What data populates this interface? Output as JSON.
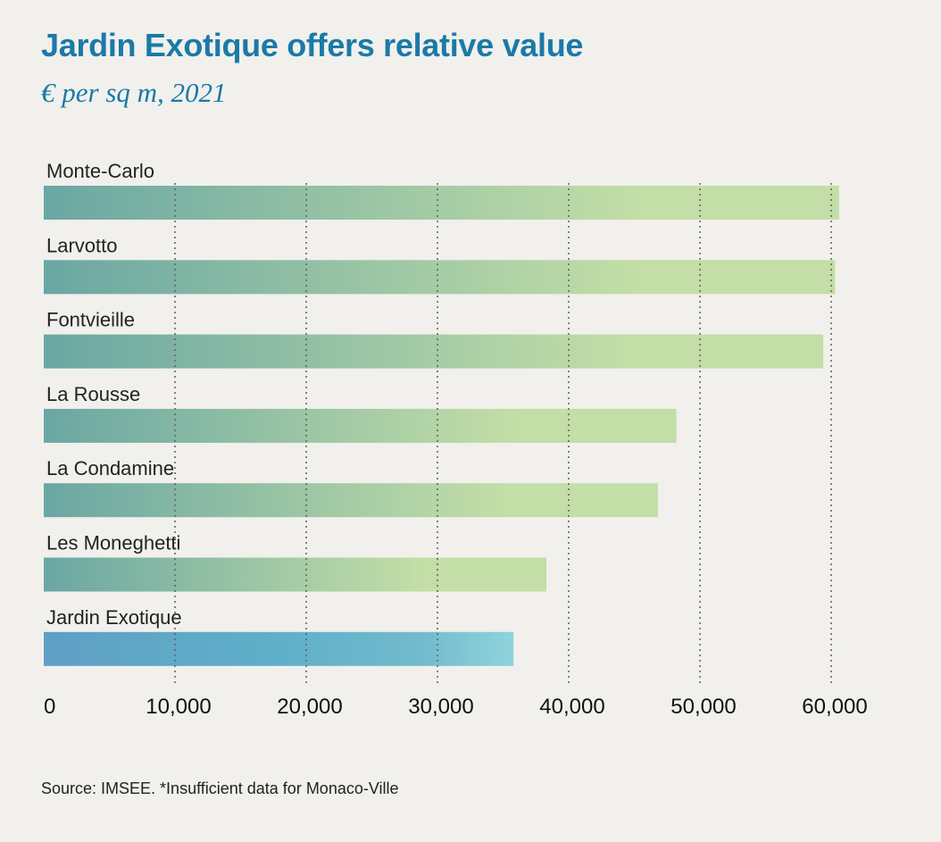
{
  "title": "Jardin Exotique offers relative value",
  "subtitle": "€ per sq m, 2021",
  "source": "Source: IMSEE. *Insufficient data for Monaco-Ville",
  "colors": {
    "title": "#1a7aa8",
    "bar_start": "#6aa7a3",
    "bar_end": "#c3dea6",
    "highlight_start": "#5f9fc4",
    "highlight_mid": "#5fb0c9",
    "highlight_end": "#8fd3dc"
  },
  "chart_data": {
    "type": "bar",
    "orientation": "horizontal",
    "title": "Jardin Exotique offers relative value",
    "subtitle": "€ per sq m, 2021",
    "xlabel": "",
    "ylabel": "",
    "categories": [
      "Monte-Carlo",
      "Larvotto",
      "Fontvieille",
      "La Rousse",
      "La Condamine",
      "Les Moneghetti",
      "Jardin Exotique"
    ],
    "values": [
      60600,
      60300,
      59400,
      48200,
      46800,
      38300,
      35800
    ],
    "highlight": "Jardin Exotique",
    "xlim": [
      0,
      60000
    ],
    "ticks": [
      0,
      10000,
      20000,
      30000,
      40000,
      50000,
      60000
    ],
    "tick_labels": [
      "0",
      "10,000",
      "20,000",
      "30,000",
      "40,000",
      "50,000",
      "60,000"
    ],
    "grid": "vertical dotted"
  }
}
